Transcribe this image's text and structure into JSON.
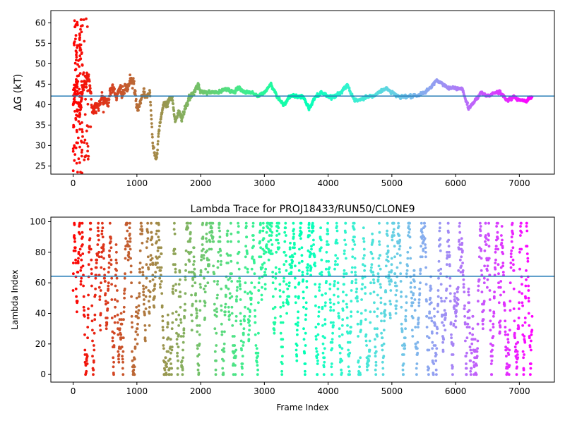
{
  "chart_data": [
    {
      "type": "scatter",
      "title": "",
      "xlabel": "",
      "ylabel": "ΔG (kT)",
      "xlim": [
        -350,
        7550
      ],
      "ylim": [
        23,
        63
      ],
      "xticks": [
        0,
        1000,
        2000,
        3000,
        4000,
        5000,
        6000,
        7000
      ],
      "yticks": [
        25,
        30,
        35,
        40,
        45,
        50,
        55,
        60
      ],
      "hline": 42.1,
      "hline_color": "#1f77b4",
      "colormap": "rainbow",
      "grid": false,
      "trace_anchors": [
        [
          0,
          40
        ],
        [
          50,
          45
        ],
        [
          100,
          38
        ],
        [
          150,
          44
        ],
        [
          200,
          46
        ],
        [
          250,
          47
        ],
        [
          300,
          38
        ],
        [
          350,
          39
        ],
        [
          400,
          40
        ],
        [
          450,
          42
        ],
        [
          500,
          41
        ],
        [
          550,
          41
        ],
        [
          600,
          44
        ],
        [
          650,
          43
        ],
        [
          700,
          42
        ],
        [
          750,
          44
        ],
        [
          800,
          43
        ],
        [
          850,
          44
        ],
        [
          900,
          46
        ],
        [
          950,
          45
        ],
        [
          1000,
          39
        ],
        [
          1050,
          40
        ],
        [
          1100,
          43
        ],
        [
          1150,
          42
        ],
        [
          1200,
          43
        ],
        [
          1250,
          30
        ],
        [
          1300,
          27
        ],
        [
          1320,
          29
        ],
        [
          1350,
          35
        ],
        [
          1400,
          39
        ],
        [
          1450,
          40
        ],
        [
          1500,
          41
        ],
        [
          1550,
          42
        ],
        [
          1600,
          36
        ],
        [
          1650,
          38
        ],
        [
          1700,
          37
        ],
        [
          1750,
          39
        ],
        [
          1800,
          41
        ],
        [
          1850,
          42
        ],
        [
          1900,
          43
        ],
        [
          1950,
          45
        ],
        [
          2000,
          43
        ],
        [
          2100,
          43
        ],
        [
          2200,
          43
        ],
        [
          2300,
          43
        ],
        [
          2400,
          44
        ],
        [
          2500,
          43
        ],
        [
          2600,
          44
        ],
        [
          2700,
          43
        ],
        [
          2800,
          43
        ],
        [
          2900,
          42
        ],
        [
          3000,
          43
        ],
        [
          3100,
          45
        ],
        [
          3200,
          42
        ],
        [
          3300,
          40
        ],
        [
          3400,
          42
        ],
        [
          3500,
          42
        ],
        [
          3600,
          42
        ],
        [
          3700,
          39
        ],
        [
          3800,
          42
        ],
        [
          3900,
          43
        ],
        [
          4000,
          42
        ],
        [
          4100,
          42
        ],
        [
          4200,
          43
        ],
        [
          4300,
          45
        ],
        [
          4400,
          41
        ],
        [
          4500,
          41
        ],
        [
          4600,
          42
        ],
        [
          4700,
          42
        ],
        [
          4800,
          43
        ],
        [
          4900,
          44
        ],
        [
          5000,
          43
        ],
        [
          5100,
          42
        ],
        [
          5200,
          42
        ],
        [
          5300,
          42
        ],
        [
          5400,
          42
        ],
        [
          5500,
          43
        ],
        [
          5600,
          44
        ],
        [
          5700,
          46
        ],
        [
          5800,
          45
        ],
        [
          5900,
          44
        ],
        [
          6000,
          44
        ],
        [
          6100,
          44
        ],
        [
          6200,
          39
        ],
        [
          6300,
          41
        ],
        [
          6400,
          43
        ],
        [
          6500,
          42
        ],
        [
          6600,
          43
        ],
        [
          6700,
          43
        ],
        [
          6800,
          41
        ],
        [
          6900,
          42
        ],
        [
          7000,
          41
        ],
        [
          7100,
          41
        ],
        [
          7200,
          42
        ]
      ],
      "early_scatter_range": [
        0,
        300
      ],
      "early_scatter_y": [
        23,
        61
      ],
      "frames": 7200
    },
    {
      "type": "scatter",
      "title": "Lambda Trace for PROJ18433/RUN50/CLONE9",
      "xlabel": "Frame Index",
      "ylabel": "Lambda Index",
      "xlim": [
        -350,
        7550
      ],
      "ylim": [
        -5,
        103
      ],
      "xticks": [
        0,
        1000,
        2000,
        3000,
        4000,
        5000,
        6000,
        7000
      ],
      "yticks": [
        0,
        20,
        40,
        60,
        80,
        100
      ],
      "hline": 64.3,
      "hline_color": "#1f77b4",
      "colormap": "rainbow",
      "grid": false,
      "frames": 7200,
      "lambda_range": [
        0,
        99
      ]
    }
  ]
}
